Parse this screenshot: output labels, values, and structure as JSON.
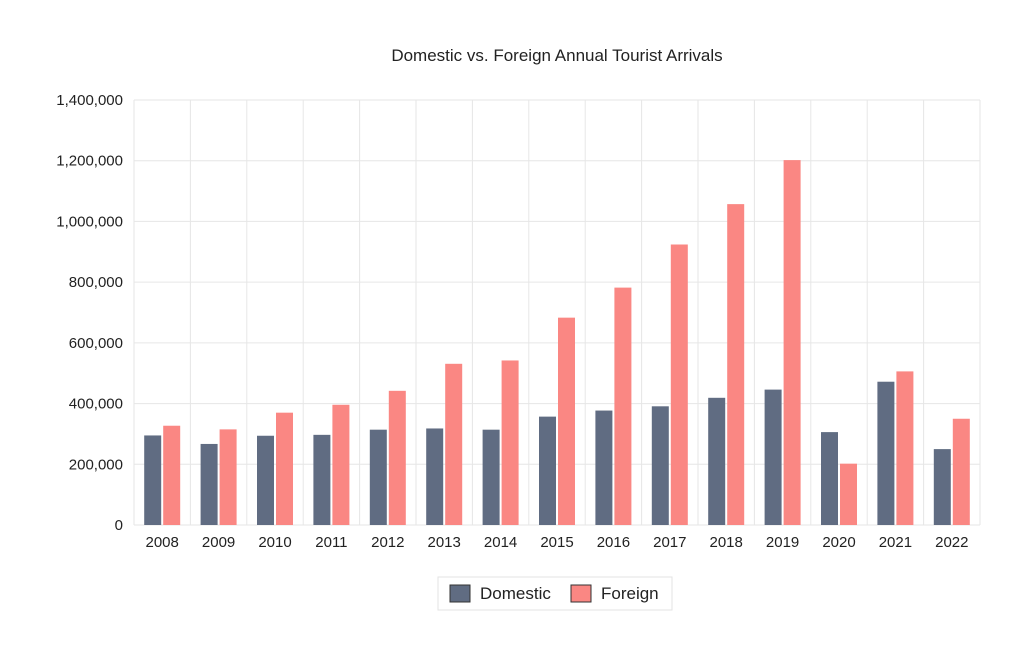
{
  "chart_data": {
    "type": "bar",
    "title": "Domestic vs. Foreign Annual Tourist Arrivals",
    "xlabel": "",
    "ylabel": "",
    "categories": [
      "2008",
      "2009",
      "2010",
      "2011",
      "2012",
      "2013",
      "2014",
      "2015",
      "2016",
      "2017",
      "2018",
      "2019",
      "2020",
      "2021",
      "2022"
    ],
    "series": [
      {
        "name": "Domestic",
        "color": "#606c82",
        "values": [
          295000,
          267000,
          294000,
          297000,
          314000,
          318000,
          314000,
          357000,
          377000,
          391000,
          419000,
          446000,
          306000,
          472000,
          250000
        ]
      },
      {
        "name": "Foreign",
        "color": "#fa8783",
        "values": [
          327000,
          315000,
          370000,
          396000,
          442000,
          531000,
          542000,
          683000,
          782000,
          924000,
          1057000,
          1202000,
          202000,
          506000,
          350000
        ]
      }
    ],
    "ylim": [
      0,
      1400000
    ],
    "yticks": [
      "0",
      "200,000",
      "400,000",
      "600,000",
      "800,000",
      "1,000,000",
      "1,200,000",
      "1,400,000"
    ],
    "grid": true,
    "legend_position": "bottom-center"
  }
}
